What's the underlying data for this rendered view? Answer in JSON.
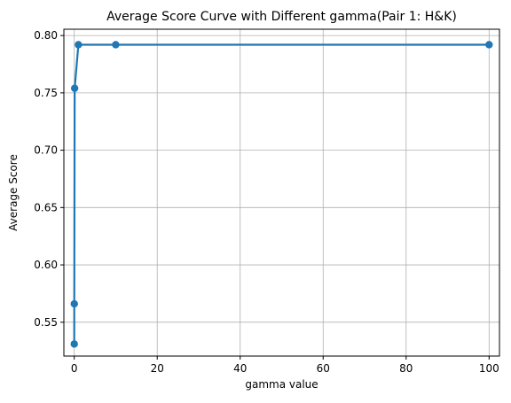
{
  "chart_data": {
    "type": "line",
    "title": "Average Score Curve with Different gamma(Pair 1: H&K)",
    "xlabel": "gamma value",
    "ylabel": "Average Score",
    "xlim": [
      -2.5,
      102.5
    ],
    "ylim": [
      0.5205,
      0.8055
    ],
    "xticks": [
      0,
      20,
      40,
      60,
      80,
      100
    ],
    "xtick_labels": [
      "0",
      "20",
      "40",
      "60",
      "80",
      "100"
    ],
    "yticks": [
      0.55,
      0.6,
      0.65,
      0.7,
      0.75,
      0.8
    ],
    "ytick_labels": [
      "0.55",
      "0.60",
      "0.65",
      "0.70",
      "0.75",
      "0.80"
    ],
    "grid": true,
    "series": [
      {
        "color": "#1f77b4",
        "x": [
          0.001,
          0.01,
          0.1,
          1,
          10,
          100
        ],
        "y": [
          0.531,
          0.566,
          0.754,
          0.792,
          0.792,
          0.792
        ]
      }
    ]
  }
}
